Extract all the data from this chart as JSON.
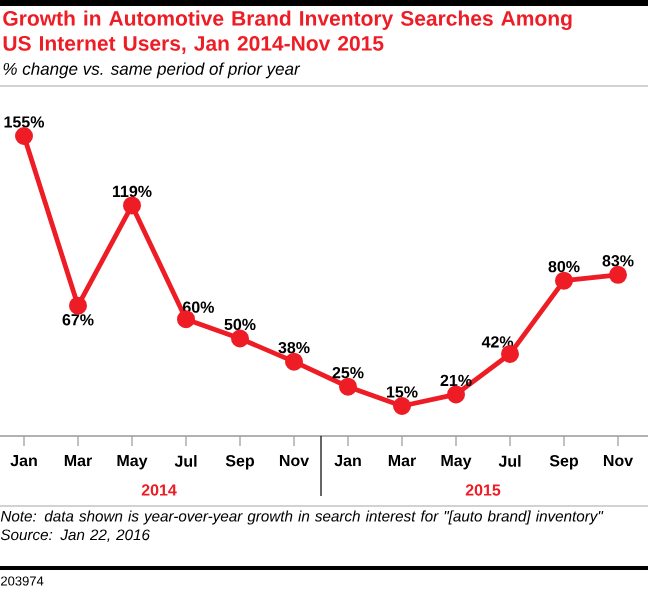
{
  "chart_data": {
    "type": "line",
    "title": "Growth in Automotive Brand Inventory Searches Among US Internet Users, Jan 2014-Nov 2015",
    "subtitle": "% change vs. same period of prior year",
    "categories": [
      "Jan",
      "Mar",
      "May",
      "Jul",
      "Sep",
      "Nov",
      "Jan",
      "Mar",
      "May",
      "Jul",
      "Sep",
      "Nov"
    ],
    "values": [
      155,
      67,
      119,
      60,
      50,
      38,
      25,
      15,
      21,
      42,
      80,
      83
    ],
    "value_labels": [
      "155%",
      "67%",
      "119%",
      "60%",
      "50%",
      "38%",
      "25%",
      "15%",
      "21%",
      "42%",
      "80%",
      "83%"
    ],
    "color": "#ee1c25",
    "marker": "circle",
    "line_style": "solid",
    "tick_labels": "x",
    "grid": false,
    "annotations": [
      "2014",
      "2015",
      "Note: data shown is year-over-year growth in search interest for \"[auto brand] inventory\"",
      "Source: Jan 22, 2016",
      "203974"
    ]
  }
}
